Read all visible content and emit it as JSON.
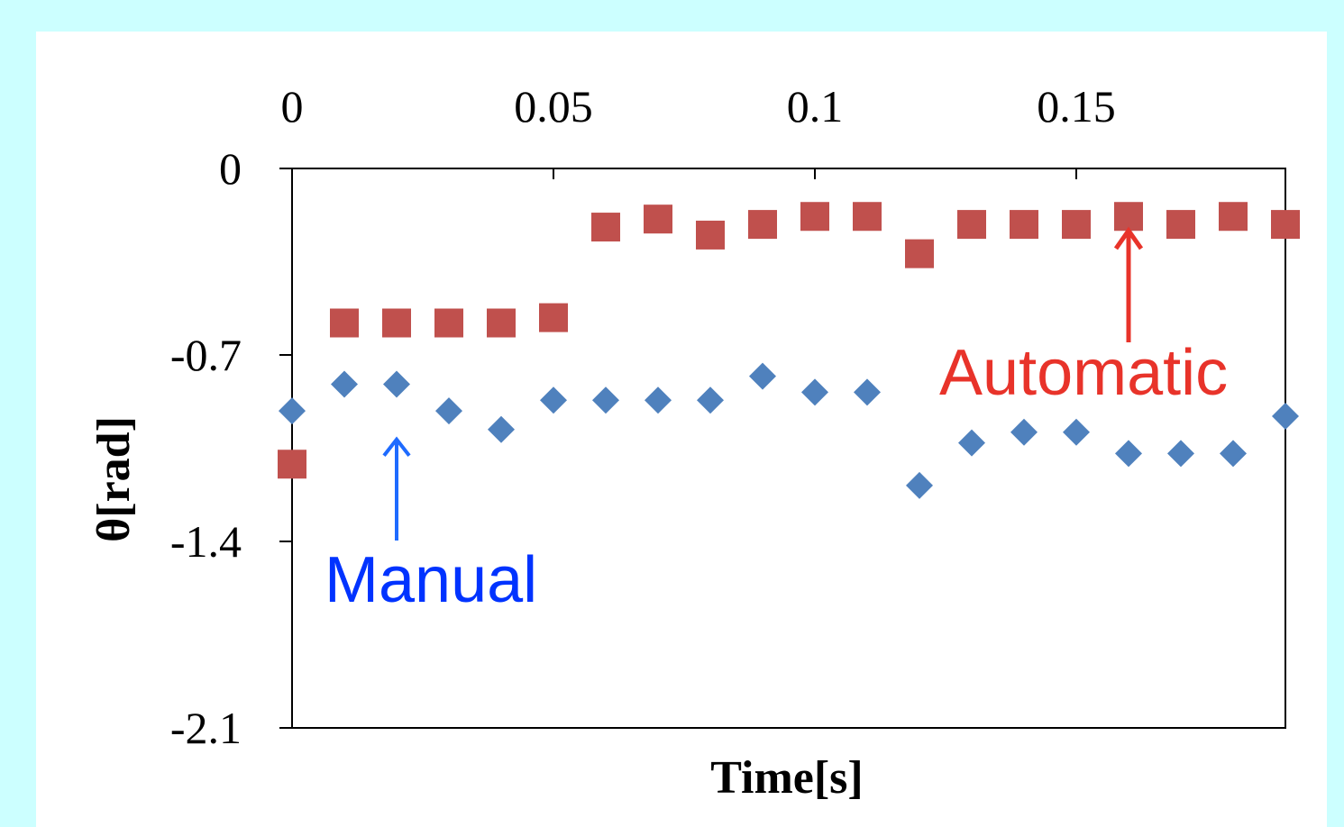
{
  "chart_data": {
    "type": "scatter",
    "title": "",
    "xlabel": "Time[s]",
    "ylabel": "θ[rad]",
    "xlim": [
      0,
      0.19
    ],
    "ylim": [
      -2.1,
      0
    ],
    "x_ticks": [
      0,
      0.05,
      0.1,
      0.15
    ],
    "x_tick_labels": [
      "0",
      "0.05",
      "0.1",
      "0.15"
    ],
    "x_axis_position": "top",
    "y_ticks": [
      0,
      -0.7,
      -1.4,
      -2.1
    ],
    "y_tick_labels": [
      "0",
      "-0.7",
      "-1.4",
      "-2.1"
    ],
    "grid": false,
    "legend": "none",
    "series": [
      {
        "marker": "diamond",
        "color": "#4F81BD",
        "x": [
          0,
          0.01,
          0.02,
          0.03,
          0.04,
          0.05,
          0.06,
          0.07,
          0.08,
          0.09,
          0.1,
          0.11,
          0.12,
          0.13,
          0.14,
          0.15,
          0.16,
          0.17,
          0.18,
          0.19
        ],
        "y": [
          -0.91,
          -0.81,
          -0.81,
          -0.91,
          -0.98,
          -0.87,
          -0.87,
          -0.87,
          -0.87,
          -0.78,
          -0.84,
          -0.84,
          -1.19,
          -1.03,
          -0.99,
          -0.99,
          -1.07,
          -1.07,
          -1.07,
          -0.93
        ]
      },
      {
        "marker": "square",
        "color": "#C0504D",
        "x": [
          0,
          0.01,
          0.02,
          0.03,
          0.04,
          0.05,
          0.06,
          0.07,
          0.08,
          0.09,
          0.1,
          0.11,
          0.12,
          0.13,
          0.14,
          0.15,
          0.16,
          0.17,
          0.18,
          0.19
        ],
        "y": [
          -1.11,
          -0.58,
          -0.58,
          -0.58,
          -0.58,
          -0.56,
          -0.22,
          -0.19,
          -0.25,
          -0.21,
          -0.18,
          -0.18,
          -0.32,
          -0.21,
          -0.21,
          -0.21,
          -0.18,
          -0.21,
          -0.18,
          -0.21
        ]
      }
    ],
    "annotations": [
      {
        "text": "Manual",
        "color": "#0033FF",
        "points_to": [
          0.02,
          -0.99
        ]
      },
      {
        "text": "Automatic",
        "color": "#E8332A",
        "points_to": [
          0.16,
          -0.25
        ]
      }
    ]
  }
}
